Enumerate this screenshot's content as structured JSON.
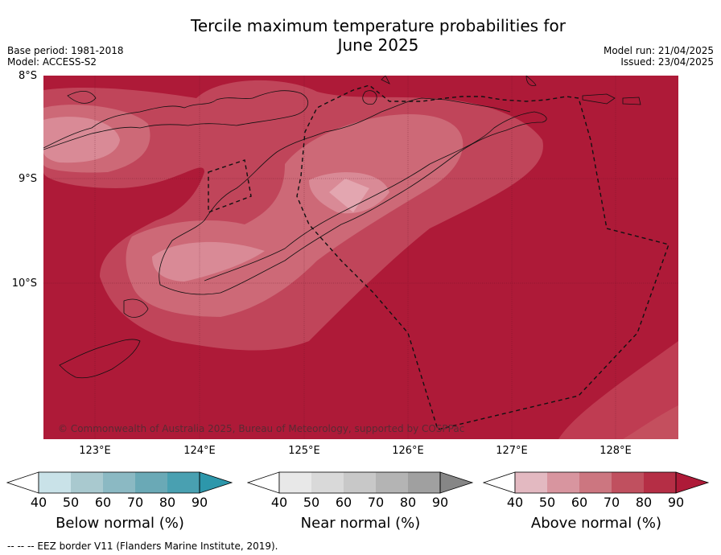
{
  "title_line1": "Tercile maximum temperature probabilities for",
  "title_line2": "June 2025",
  "meta_left": {
    "base_period": "Base period: 1981-2018",
    "model": "Model: ACCESS-S2"
  },
  "meta_right": {
    "model_run": "Model run: 21/04/2025",
    "issued": "Issued: 23/04/2025"
  },
  "lat_labels": [
    "8°S",
    "9°S",
    "10°S"
  ],
  "lon_labels": [
    "123°E",
    "124°E",
    "125°E",
    "126°E",
    "127°E",
    "128°E"
  ],
  "copyright": "© Commonwealth of Australia 2025, Bureau of Meteorology, supported by COSPPac",
  "colorbars": [
    {
      "title": "Below normal (%)",
      "colors": [
        "#ffffff",
        "#c9e2e8",
        "#a9c9cf",
        "#8bb9c3",
        "#6aa9b6",
        "#49a0b1",
        "#2d97ab"
      ]
    },
    {
      "title": "Near normal (%)",
      "colors": [
        "#ffffff",
        "#e8e8e8",
        "#d9d9d9",
        "#c8c8c8",
        "#b4b4b4",
        "#a0a0a0",
        "#868686"
      ]
    },
    {
      "title": "Above normal (%)",
      "colors": [
        "#ffffff",
        "#e3b9c1",
        "#d8959f",
        "#cc7680",
        "#c0505f",
        "#b52e45",
        "#ae1a38"
      ]
    }
  ],
  "colorbar_ticks": [
    "40",
    "50",
    "60",
    "70",
    "80",
    "90"
  ],
  "footnote": "--  --  -- EEZ border V11 (Flanders Marine Institute, 2019).",
  "legend_colors": {
    "sea_base": "#ae1a38",
    "level80": "#c0455a",
    "level70": "#cd6977",
    "level60": "#d98a96"
  }
}
